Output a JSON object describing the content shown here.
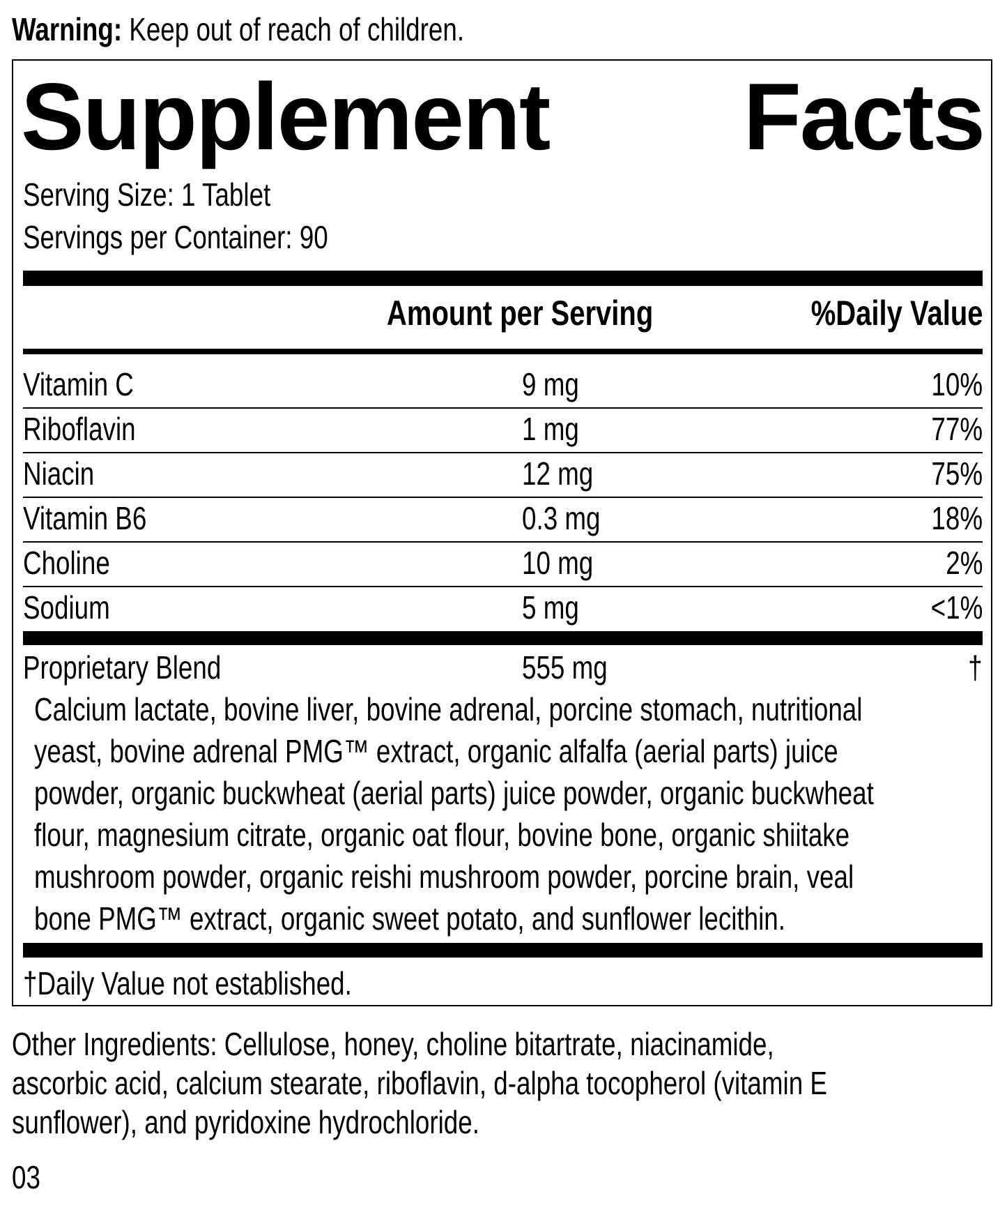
{
  "warning": {
    "label": "Warning:",
    "text": " Keep out of reach of children."
  },
  "title": {
    "word1": "Supplement",
    "word2": "Facts"
  },
  "serving_size": "Serving Size: 1 Tablet",
  "servings_per_container": "Servings per Container: 90",
  "table_header": {
    "amount": "Amount per Serving",
    "daily_value": "%Daily Value"
  },
  "nutrients": [
    {
      "name": "Vitamin C",
      "amount": "9 mg",
      "dv": "10%"
    },
    {
      "name": "Riboflavin",
      "amount": "1 mg",
      "dv": "77%"
    },
    {
      "name": "Niacin",
      "amount": "12 mg",
      "dv": "75%"
    },
    {
      "name": "Vitamin B6",
      "amount": "0.3 mg",
      "dv": "18%"
    },
    {
      "name": "Choline",
      "amount": "10 mg",
      "dv": "2%"
    },
    {
      "name": "Sodium",
      "amount": "5 mg",
      "dv": "<1%"
    }
  ],
  "blend": {
    "name": "Proprietary Blend",
    "amount": "555 mg",
    "dv": "†",
    "lines": [
      "Calcium lactate, bovine liver, bovine adrenal, porcine stomach, nutritional",
      "yeast, bovine adrenal PMG™ extract, organic alfalfa (aerial parts) juice",
      "powder, organic buckwheat (aerial parts) juice powder, organic buckwheat",
      "flour, magnesium citrate, organic oat flour, bovine bone, organic shiitake",
      "mushroom powder, organic reishi mushroom powder, porcine brain, veal",
      "bone PMG™ extract, organic sweet potato, and sunflower lecithin."
    ]
  },
  "footnote": "†Daily Value not established.",
  "other_ingredients": [
    "Other Ingredients: Cellulose, honey, choline bitartrate, niacinamide,",
    "ascorbic acid, calcium stearate, riboflavin, d-alpha tocopherol (vitamin E",
    "sunflower), and pyridoxine hydrochloride."
  ],
  "code": "03"
}
